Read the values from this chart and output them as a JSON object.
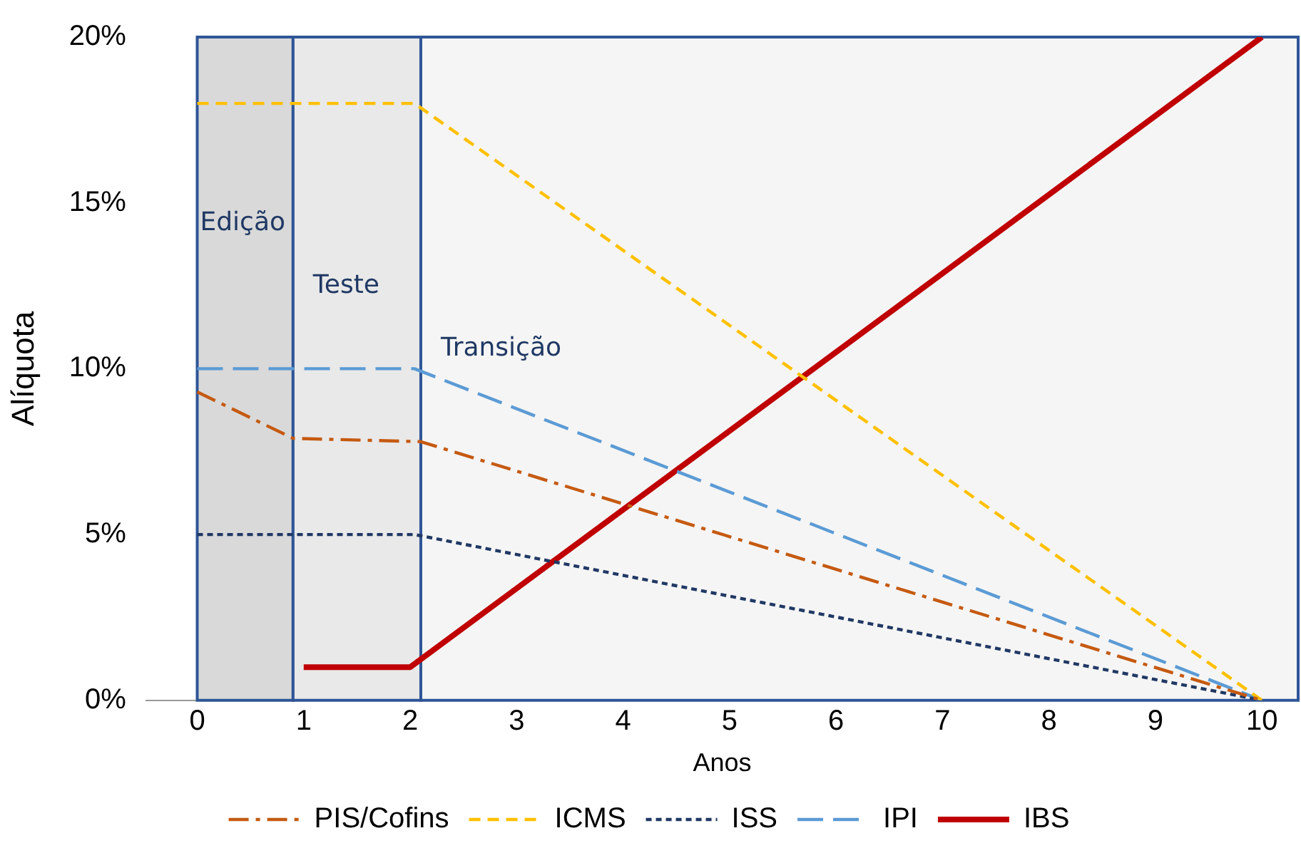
{
  "chart_data": {
    "type": "line",
    "xlabel": "Anos",
    "ylabel": "Alíquota",
    "xlim": [
      -0.48,
      10.34
    ],
    "xticks": [
      0,
      1,
      2,
      3,
      4,
      5,
      6,
      7,
      8,
      9,
      10
    ],
    "ylim": [
      0,
      20
    ],
    "yticks": [
      {
        "value": 0,
        "label": "0%"
      },
      {
        "value": 5,
        "label": "5%"
      },
      {
        "value": 10,
        "label": "10%"
      },
      {
        "value": 15,
        "label": "15%"
      },
      {
        "value": 20,
        "label": "20%"
      }
    ],
    "grid": false,
    "legend": "bottom",
    "marker": "none",
    "bands": [
      {
        "axis": "x",
        "from": 0,
        "to": 0.9,
        "label": "Edição",
        "color": "#d9d9d9"
      },
      {
        "axis": "x",
        "from": 0.9,
        "to": 2.1,
        "label": "Teste",
        "color": "#e9e9e9"
      },
      {
        "axis": "x",
        "from": 2.1,
        "to": 10.34,
        "label": "Transição",
        "color": "#f5f5f5"
      }
    ],
    "series": [
      {
        "name": "PIS/Cofins",
        "color": "#c55a11",
        "line_style": "dashdot",
        "x": [
          0,
          0.9,
          2.1,
          10
        ],
        "values": [
          9.3,
          7.9,
          7.8,
          0
        ]
      },
      {
        "name": "ICMS",
        "color": "#ffc000",
        "line_style": "dashed",
        "x": [
          0,
          2.04,
          10
        ],
        "values": [
          18,
          18,
          0
        ]
      },
      {
        "name": "ISS",
        "color": "#203864",
        "line_style": "dotted",
        "x": [
          0,
          2.04,
          10
        ],
        "values": [
          5,
          5,
          0
        ]
      },
      {
        "name": "IPI",
        "color": "#5b9bd5",
        "line_style": "longdash",
        "x": [
          0,
          2.04,
          10
        ],
        "values": [
          10,
          10,
          0
        ]
      },
      {
        "name": "IBS",
        "color": "#c00000",
        "line_style": "solid",
        "x": [
          1,
          2,
          10
        ],
        "values": [
          1,
          1,
          20
        ]
      }
    ]
  }
}
